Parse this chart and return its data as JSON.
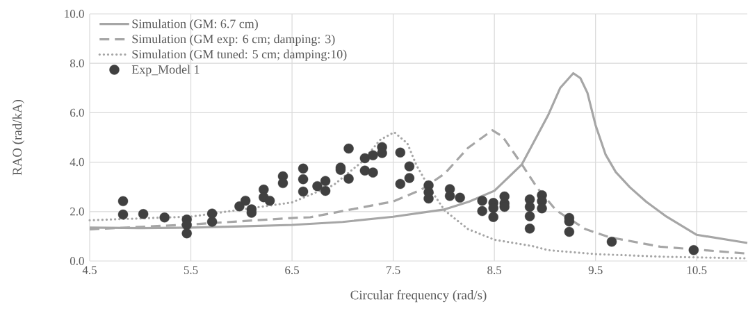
{
  "chart_data": {
    "type": "line",
    "xlabel": "Circular frequency (rad/s)",
    "ylabel": "RAO (rad/kA)",
    "xlim": [
      4.5,
      11.0
    ],
    "ylim": [
      0,
      10
    ],
    "xticks": [
      4.5,
      5.5,
      6.5,
      7.5,
      8.5,
      9.5,
      10.5
    ],
    "yticks": [
      {
        "value": 0,
        "label": "0.0"
      },
      {
        "value": 2,
        "label": "2.0"
      },
      {
        "value": 4,
        "label": "4.0"
      },
      {
        "value": 6,
        "label": "6.0"
      },
      {
        "value": 8,
        "label": "8.0"
      },
      {
        "value": 10,
        "label": "10.0"
      }
    ],
    "grid": true,
    "legend": "top left",
    "series": [
      {
        "name": "Simulation (GM: 6.7 cm)",
        "line_style": "solid",
        "marker": "none",
        "color": "#a6a6a6",
        "x": [
          4.5,
          5.0,
          5.5,
          6.0,
          6.5,
          7.0,
          7.5,
          8.0,
          8.25,
          8.5,
          8.77,
          9.03,
          9.15,
          9.28,
          9.35,
          9.42,
          9.5,
          9.6,
          9.7,
          9.84,
          10.0,
          10.2,
          10.5,
          11.0
        ],
        "values": [
          1.35,
          1.33,
          1.35,
          1.4,
          1.46,
          1.58,
          1.79,
          2.08,
          2.4,
          2.84,
          3.9,
          5.89,
          7.0,
          7.6,
          7.4,
          6.8,
          5.5,
          4.3,
          3.6,
          2.98,
          2.4,
          1.8,
          1.06,
          0.73
        ]
      },
      {
        "name": "Simulation (GM exp: 6 cm; damping: 3)",
        "line_style": "dashed",
        "marker": "none",
        "color": "#a6a6a6",
        "x": [
          4.5,
          5.5,
          6.5,
          6.68,
          7.5,
          7.78,
          8.01,
          8.24,
          8.48,
          8.58,
          8.77,
          8.92,
          9.11,
          9.4,
          9.64,
          10.14,
          11.0
        ],
        "values": [
          1.28,
          1.48,
          1.74,
          1.77,
          2.41,
          2.89,
          3.54,
          4.58,
          5.29,
          5.04,
          3.92,
          2.98,
          2.05,
          1.29,
          0.96,
          0.58,
          0.3
        ]
      },
      {
        "name": "Simulation (GM tuned: 5 cm; damping:10)",
        "line_style": "dotted",
        "marker": "none",
        "color": "#a6a6a6",
        "x": [
          4.5,
          5.51,
          6.5,
          6.64,
          6.91,
          7.19,
          7.37,
          7.51,
          7.64,
          7.73,
          7.87,
          8.01,
          8.24,
          8.5,
          8.88,
          9.03,
          9.5,
          10.2,
          11.0
        ],
        "values": [
          1.65,
          1.8,
          2.37,
          2.61,
          3.07,
          4.01,
          4.9,
          5.21,
          4.76,
          3.87,
          2.88,
          2.04,
          1.29,
          0.86,
          0.6,
          0.44,
          0.28,
          0.17,
          0.11
        ]
      },
      {
        "name": "Exp_Model 1",
        "type": "scatter",
        "marker": "circle",
        "color": "#404040",
        "x": [
          4.83,
          4.83,
          5.03,
          5.24,
          5.46,
          5.46,
          5.46,
          5.71,
          5.71,
          5.98,
          6.04,
          6.1,
          6.1,
          6.22,
          6.22,
          6.28,
          6.41,
          6.41,
          6.61,
          6.61,
          6.61,
          6.75,
          6.83,
          6.83,
          6.98,
          6.98,
          7.06,
          7.06,
          7.22,
          7.22,
          7.3,
          7.3,
          7.39,
          7.39,
          7.57,
          7.57,
          7.66,
          7.66,
          7.85,
          7.85,
          7.85,
          8.06,
          8.06,
          8.16,
          8.38,
          8.38,
          8.49,
          8.49,
          8.49,
          8.6,
          8.6,
          8.6,
          8.85,
          8.85,
          8.85,
          8.85,
          8.97,
          8.97,
          8.97,
          9.24,
          9.24,
          9.24,
          9.66,
          10.47
        ],
        "values": [
          2.42,
          1.88,
          1.9,
          1.76,
          1.68,
          1.46,
          1.12,
          1.92,
          1.59,
          2.21,
          2.44,
          2.09,
          1.95,
          2.89,
          2.58,
          2.44,
          3.43,
          3.15,
          3.74,
          3.31,
          2.81,
          3.03,
          3.24,
          2.84,
          3.78,
          3.69,
          4.55,
          3.33,
          4.16,
          3.66,
          4.28,
          3.58,
          4.61,
          4.37,
          4.39,
          3.12,
          3.83,
          3.36,
          3.06,
          2.78,
          2.53,
          2.91,
          2.63,
          2.56,
          2.44,
          2.02,
          2.35,
          2.14,
          1.78,
          2.61,
          2.33,
          2.19,
          2.49,
          2.19,
          1.81,
          1.31,
          2.66,
          2.42,
          2.13,
          1.74,
          1.6,
          1.18,
          0.78,
          0.44
        ]
      }
    ]
  }
}
